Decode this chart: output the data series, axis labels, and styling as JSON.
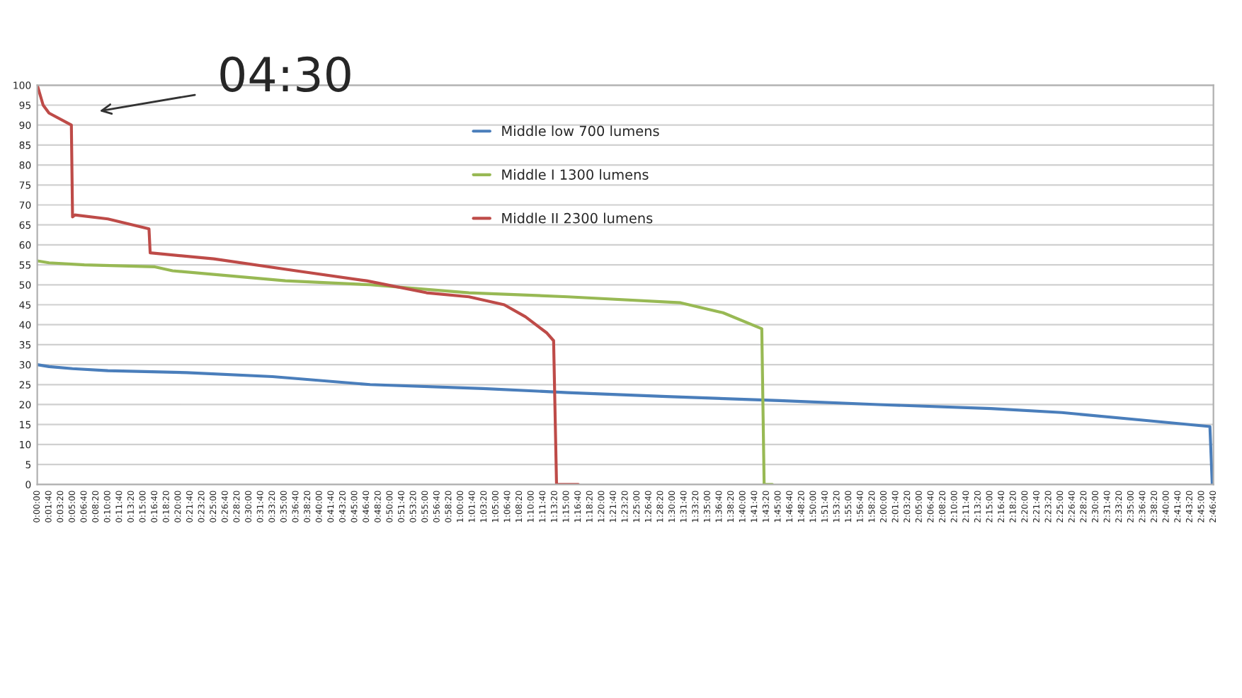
{
  "chart_data": {
    "type": "line",
    "annotations": [
      "04:30"
    ],
    "series": [
      {
        "name": "Middle low 700 lumens",
        "color": "#4a7ebb",
        "x": [
          0,
          100,
          300,
          600,
          1270,
          2000,
          2830,
          3790,
          4510,
          5350,
          6310,
          7150,
          8110,
          8710,
          9430,
          9970,
          9990,
          10000
        ],
        "values": [
          30,
          29.5,
          29,
          28.5,
          28,
          27,
          25,
          24,
          23,
          22,
          21,
          20,
          19,
          18,
          16,
          14.5,
          0,
          0
        ]
      },
      {
        "name": "Middle I 1300 lumens",
        "color": "#98b954",
        "x": [
          0,
          100,
          400,
          1000,
          1150,
          2110,
          2830,
          3670,
          4510,
          5470,
          5830,
          6160,
          6180,
          6250
        ],
        "values": [
          56,
          55.5,
          55,
          54.5,
          53.5,
          51,
          50,
          48,
          47,
          45.5,
          43,
          39,
          0,
          0
        ]
      },
      {
        "name": "Middle II 2300 lumens",
        "color": "#be4b48",
        "x": [
          0,
          50,
          100,
          290,
          300,
          320,
          600,
          950,
          960,
          1500,
          2200,
          2800,
          3310,
          3670,
          3970,
          4150,
          4330,
          4390,
          4415,
          4600
        ],
        "values": [
          100,
          95,
          93,
          90,
          67,
          67.5,
          66.5,
          64,
          58,
          56.5,
          53.5,
          51,
          48,
          47,
          45,
          42,
          38,
          36,
          0,
          0
        ]
      }
    ],
    "xlim": [
      0,
      10000
    ],
    "xticks": [
      {
        "value": 0,
        "label": "0:00:00"
      },
      {
        "value": 100,
        "label": "0:01:40"
      },
      {
        "value": 200,
        "label": "0:03:20"
      },
      {
        "value": 300,
        "label": "0:05:00"
      },
      {
        "value": 400,
        "label": "0:06:40"
      },
      {
        "value": 500,
        "label": "0:08:20"
      },
      {
        "value": 600,
        "label": "0:10:00"
      },
      {
        "value": 700,
        "label": "0:11:40"
      },
      {
        "value": 800,
        "label": "0:13:20"
      },
      {
        "value": 900,
        "label": "0:15:00"
      },
      {
        "value": 1000,
        "label": "0:16:40"
      },
      {
        "value": 1100,
        "label": "0:18:20"
      },
      {
        "value": 1200,
        "label": "0:20:00"
      },
      {
        "value": 1300,
        "label": "0:21:40"
      },
      {
        "value": 1400,
        "label": "0:23:20"
      },
      {
        "value": 1500,
        "label": "0:25:00"
      },
      {
        "value": 1600,
        "label": "0:26:40"
      },
      {
        "value": 1700,
        "label": "0:28:20"
      },
      {
        "value": 1800,
        "label": "0:30:00"
      },
      {
        "value": 1900,
        "label": "0:31:40"
      },
      {
        "value": 2000,
        "label": "0:33:20"
      },
      {
        "value": 2100,
        "label": "0:35:00"
      },
      {
        "value": 2200,
        "label": "0:36:40"
      },
      {
        "value": 2300,
        "label": "0:38:20"
      },
      {
        "value": 2400,
        "label": "0:40:00"
      },
      {
        "value": 2500,
        "label": "0:41:40"
      },
      {
        "value": 2600,
        "label": "0:43:20"
      },
      {
        "value": 2700,
        "label": "0:45:00"
      },
      {
        "value": 2800,
        "label": "0:46:40"
      },
      {
        "value": 2900,
        "label": "0:48:20"
      },
      {
        "value": 3000,
        "label": "0:50:00"
      },
      {
        "value": 3100,
        "label": "0:51:40"
      },
      {
        "value": 3200,
        "label": "0:53:20"
      },
      {
        "value": 3300,
        "label": "0:55:00"
      },
      {
        "value": 3400,
        "label": "0:56:40"
      },
      {
        "value": 3500,
        "label": "0:58:20"
      },
      {
        "value": 3600,
        "label": "1:00:00"
      },
      {
        "value": 3700,
        "label": "1:01:40"
      },
      {
        "value": 3800,
        "label": "1:03:20"
      },
      {
        "value": 3900,
        "label": "1:05:00"
      },
      {
        "value": 4000,
        "label": "1:06:40"
      },
      {
        "value": 4100,
        "label": "1:08:20"
      },
      {
        "value": 4200,
        "label": "1:10:00"
      },
      {
        "value": 4300,
        "label": "1:11:40"
      },
      {
        "value": 4400,
        "label": "1:13:20"
      },
      {
        "value": 4500,
        "label": "1:15:00"
      },
      {
        "value": 4600,
        "label": "1:16:40"
      },
      {
        "value": 4700,
        "label": "1:18:20"
      },
      {
        "value": 4800,
        "label": "1:20:00"
      },
      {
        "value": 4900,
        "label": "1:21:40"
      },
      {
        "value": 5000,
        "label": "1:23:20"
      },
      {
        "value": 5100,
        "label": "1:25:00"
      },
      {
        "value": 5200,
        "label": "1:26:40"
      },
      {
        "value": 5300,
        "label": "1:28:20"
      },
      {
        "value": 5400,
        "label": "1:30:00"
      },
      {
        "value": 5500,
        "label": "1:31:40"
      },
      {
        "value": 5600,
        "label": "1:33:20"
      },
      {
        "value": 5700,
        "label": "1:35:00"
      },
      {
        "value": 5800,
        "label": "1:36:40"
      },
      {
        "value": 5900,
        "label": "1:38:20"
      },
      {
        "value": 6000,
        "label": "1:40:00"
      },
      {
        "value": 6100,
        "label": "1:41:40"
      },
      {
        "value": 6200,
        "label": "1:43:20"
      },
      {
        "value": 6300,
        "label": "1:45:00"
      },
      {
        "value": 6400,
        "label": "1:46:40"
      },
      {
        "value": 6500,
        "label": "1:48:20"
      },
      {
        "value": 6600,
        "label": "1:50:00"
      },
      {
        "value": 6700,
        "label": "1:51:40"
      },
      {
        "value": 6800,
        "label": "1:53:20"
      },
      {
        "value": 6900,
        "label": "1:55:00"
      },
      {
        "value": 7000,
        "label": "1:56:40"
      },
      {
        "value": 7100,
        "label": "1:58:20"
      },
      {
        "value": 7200,
        "label": "2:00:00"
      },
      {
        "value": 7300,
        "label": "2:01:40"
      },
      {
        "value": 7400,
        "label": "2:03:20"
      },
      {
        "value": 7500,
        "label": "2:05:00"
      },
      {
        "value": 7600,
        "label": "2:06:40"
      },
      {
        "value": 7700,
        "label": "2:08:20"
      },
      {
        "value": 7800,
        "label": "2:10:00"
      },
      {
        "value": 7900,
        "label": "2:11:40"
      },
      {
        "value": 8000,
        "label": "2:13:20"
      },
      {
        "value": 8100,
        "label": "2:15:00"
      },
      {
        "value": 8200,
        "label": "2:16:40"
      },
      {
        "value": 8300,
        "label": "2:18:20"
      },
      {
        "value": 8400,
        "label": "2:20:00"
      },
      {
        "value": 8500,
        "label": "2:21:40"
      },
      {
        "value": 8600,
        "label": "2:23:20"
      },
      {
        "value": 8700,
        "label": "2:25:00"
      },
      {
        "value": 8800,
        "label": "2:26:40"
      },
      {
        "value": 8900,
        "label": "2:28:20"
      },
      {
        "value": 9000,
        "label": "2:30:00"
      },
      {
        "value": 9100,
        "label": "2:31:40"
      },
      {
        "value": 9200,
        "label": "2:33:20"
      },
      {
        "value": 9300,
        "label": "2:35:00"
      },
      {
        "value": 9400,
        "label": "2:36:40"
      },
      {
        "value": 9500,
        "label": "2:38:20"
      },
      {
        "value": 9600,
        "label": "2:40:00"
      },
      {
        "value": 9700,
        "label": "2:41:40"
      },
      {
        "value": 9800,
        "label": "2:43:20"
      },
      {
        "value": 9900,
        "label": "2:45:00"
      },
      {
        "value": 10000,
        "label": "2:46:40"
      }
    ],
    "ylim": [
      0,
      100
    ],
    "yticks": [
      0,
      5,
      10,
      15,
      20,
      25,
      30,
      35,
      40,
      45,
      50,
      55,
      60,
      65,
      70,
      75,
      80,
      85,
      90,
      95,
      100
    ],
    "grid": "y",
    "legend": "top",
    "marker": "none",
    "line_style": "solid"
  }
}
